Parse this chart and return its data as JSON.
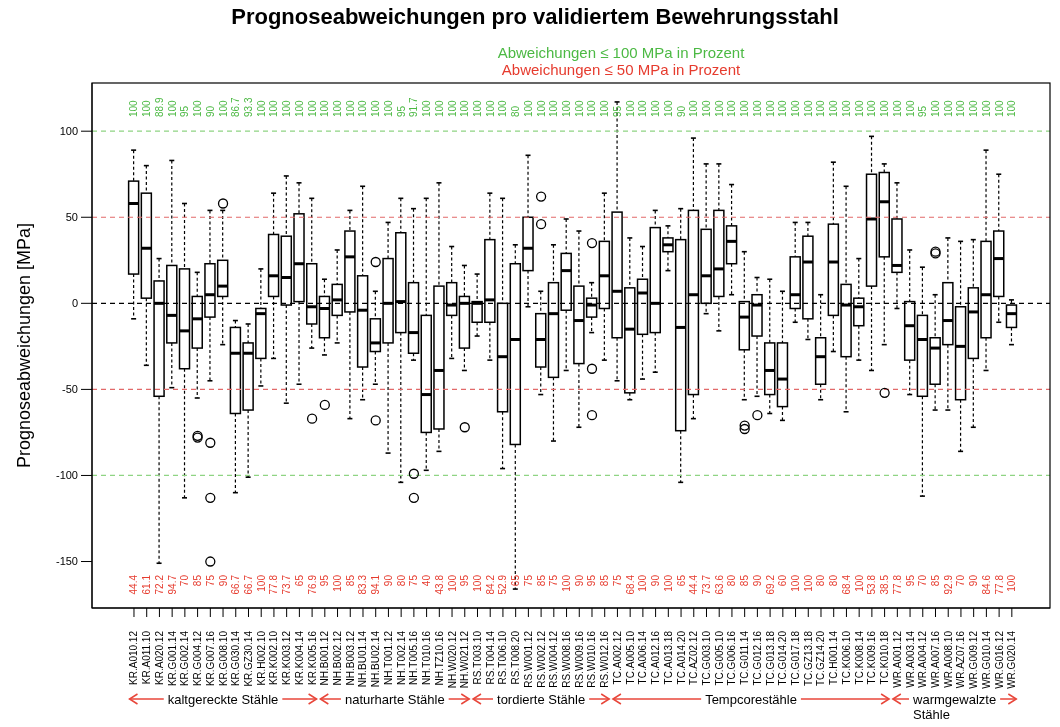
{
  "chart_data": {
    "type": "box",
    "title": "Prognoseabweichungen pro validiertem Bewehrungsstahl",
    "ylabel": "Prognoseabweichungen [MPa]",
    "categories": [
      "KR.A010.12",
      "KR.A011.10",
      "KR.A020.12",
      "KR.G001.14",
      "KR.G002.14",
      "KR.G004.12",
      "KR.G007.16",
      "KR.G008.10",
      "KR.G030.14",
      "KR.GZ30.14",
      "KR.H002.10",
      "KR.K002.10",
      "KR.K003.12",
      "KR.K004.14",
      "KR.K005.16",
      "NH.B001.12",
      "NH.B002.12",
      "NH.B003.12",
      "NH.BU01.14",
      "NH.BU02.14",
      "NH.T001.12",
      "NH.T002.14",
      "NH.T005.16",
      "NH.T010.16",
      "NH.TZ10.16",
      "NH.W020.12",
      "NH.W021.12",
      "RS.T003.10",
      "RS.T004.14",
      "RS.T006.10",
      "RS.T008.20",
      "RS.W001.12",
      "RS.W002.12",
      "RS.W004.12",
      "RS.W008.16",
      "RS.W009.16",
      "RS.W010.16",
      "RS.W012.16",
      "TC.A002.12",
      "TC.A005.10",
      "TC.A006.14",
      "TC.A012.16",
      "TC.A013.18",
      "TC.A014.20",
      "TC.AZ02.12",
      "TC.G003.10",
      "TC.G005.10",
      "TC.G006.16",
      "TC.G011.14",
      "TC.G012.16",
      "TC.G013.18",
      "TC.G014.20",
      "TC.G017.18",
      "TC.GZ13.18",
      "TC.GZ14.20",
      "TC.H001.14",
      "TC.K006.10",
      "TC.K008.14",
      "TC.K009.16",
      "TC.K010.18",
      "WR.A001.12",
      "WR.A003.14",
      "WR.A004.12",
      "WR.A007.16",
      "WR.A008.10",
      "WR.AZ07.16",
      "WR.G009.12",
      "WR.G010.14",
      "WR.G016.12",
      "WR.G020.14"
    ],
    "ylim": [
      -177,
      128
    ],
    "yticks": [
      -150,
      -100,
      -50,
      0,
      50,
      100
    ],
    "series": [
      {
        "color": "#000000",
        "boxes": [
          {
            "low": -9,
            "q1": 17,
            "median": 58,
            "q3": 71,
            "high": 89
          },
          {
            "low": -36,
            "q1": 3,
            "median": 32,
            "q3": 64,
            "high": 80
          },
          {
            "low": -151,
            "q1": -54,
            "median": 0,
            "q3": 13,
            "high": 26
          },
          {
            "low": -49,
            "q1": -23,
            "median": -7,
            "q3": 22,
            "high": 83
          },
          {
            "low": -113,
            "q1": -38,
            "median": -16,
            "q3": 20,
            "high": 58
          },
          {
            "low": -55,
            "q1": -26,
            "median": -9,
            "q3": 4,
            "high": 18,
            "outliers": [
              -77,
              -78
            ]
          },
          {
            "low": -45,
            "q1": -8,
            "median": 5,
            "q3": 23,
            "high": 54,
            "outliers": [
              -81,
              -113,
              -150
            ]
          },
          {
            "low": -24,
            "q1": 4,
            "median": 10,
            "q3": 25,
            "high": 54,
            "outliers": [
              58
            ]
          },
          {
            "low": -110,
            "q1": -64,
            "median": -29,
            "q3": -14,
            "high": -10
          },
          {
            "low": -101,
            "q1": -62,
            "median": -29,
            "q3": -23,
            "high": -12
          },
          {
            "low": -48,
            "q1": -32,
            "median": -6,
            "q3": -3,
            "high": 20
          },
          {
            "low": -32,
            "q1": 4,
            "median": 16,
            "q3": 40,
            "high": 64
          },
          {
            "low": -58,
            "q1": -1,
            "median": 15,
            "q3": 39,
            "high": 74
          },
          {
            "low": -47,
            "q1": 1,
            "median": 23,
            "q3": 52,
            "high": 70
          },
          {
            "low": -26,
            "q1": -12,
            "median": -2,
            "q3": 23,
            "high": 61,
            "outliers": [
              -67
            ]
          },
          {
            "low": -30,
            "q1": -20,
            "median": -3,
            "q3": 4,
            "high": 14,
            "outliers": [
              -59
            ]
          },
          {
            "low": -23,
            "q1": -7,
            "median": 2,
            "q3": 11,
            "high": 31
          },
          {
            "low": -67,
            "q1": -5,
            "median": 27,
            "q3": 42,
            "high": 54
          },
          {
            "low": -56,
            "q1": -37,
            "median": -4,
            "q3": 16,
            "high": 68
          },
          {
            "low": -47,
            "q1": -28,
            "median": -23,
            "q3": -9,
            "high": 7,
            "outliers": [
              24,
              -68
            ]
          },
          {
            "low": -87,
            "q1": -23,
            "median": 0,
            "q3": 26,
            "high": 47
          },
          {
            "low": -104,
            "q1": -17,
            "median": 1,
            "q3": 41,
            "high": 61
          },
          {
            "low": -33,
            "q1": -29,
            "median": -17,
            "q3": 12,
            "high": 55,
            "outliers": [
              -99,
              -113
            ]
          },
          {
            "low": -97,
            "q1": -75,
            "median": -53,
            "q3": -7,
            "high": 61
          },
          {
            "low": -86,
            "q1": -73,
            "median": -39,
            "q3": 10,
            "high": 70
          },
          {
            "low": -32,
            "q1": -7,
            "median": -1,
            "q3": 12,
            "high": 33
          },
          {
            "low": -39,
            "q1": -26,
            "median": 0,
            "q3": 4,
            "high": 22,
            "outliers": [
              -72
            ]
          },
          {
            "low": -19,
            "q1": -11,
            "median": 0,
            "q3": 1,
            "high": 17
          },
          {
            "low": -33,
            "q1": -11,
            "median": 2,
            "q3": 37,
            "high": 64
          },
          {
            "low": -96,
            "q1": -63,
            "median": -31,
            "q3": 0,
            "high": 61
          },
          {
            "low": -166,
            "q1": -82,
            "median": -21,
            "q3": 23,
            "high": 34
          },
          {
            "low": -2,
            "q1": 19,
            "median": 32,
            "q3": 50,
            "high": 86
          },
          {
            "low": -53,
            "q1": -37,
            "median": -21,
            "q3": -6,
            "high": 7,
            "outliers": [
              62,
              46
            ]
          },
          {
            "low": -80,
            "q1": -43,
            "median": -6,
            "q3": 12,
            "high": 34
          },
          {
            "low": -39,
            "q1": -4,
            "median": 19,
            "q3": 29,
            "high": 49
          },
          {
            "low": -72,
            "q1": -35,
            "median": -10,
            "q3": 10,
            "high": 42
          },
          {
            "low": -17,
            "q1": -8,
            "median": -1,
            "q3": 3,
            "high": 12,
            "outliers": [
              35,
              -38,
              -65
            ]
          },
          {
            "low": -33,
            "q1": -3,
            "median": 16,
            "q3": 36,
            "high": 64
          },
          {
            "low": -45,
            "q1": -20,
            "median": 7,
            "q3": 53,
            "high": 117
          },
          {
            "low": -56,
            "q1": -52,
            "median": -15,
            "q3": 9,
            "high": 38
          },
          {
            "low": -44,
            "q1": -18,
            "median": 6,
            "q3": 14,
            "high": 33
          },
          {
            "low": -40,
            "q1": -17,
            "median": 0,
            "q3": 44,
            "high": 54
          },
          {
            "low": 19,
            "q1": 30,
            "median": 34,
            "q3": 38,
            "high": 45
          },
          {
            "low": -104,
            "q1": -74,
            "median": -14,
            "q3": 37,
            "high": 55
          },
          {
            "low": -67,
            "q1": -53,
            "median": 5,
            "q3": 54,
            "high": 96
          },
          {
            "low": -6,
            "q1": 0,
            "median": 16,
            "q3": 43,
            "high": 81
          },
          {
            "low": -16,
            "q1": 4,
            "median": 20,
            "q3": 54,
            "high": 81
          },
          {
            "low": 5,
            "q1": 23,
            "median": 36,
            "q3": 45,
            "high": 69
          },
          {
            "low": -56,
            "q1": -27,
            "median": -8,
            "q3": 1,
            "high": 30,
            "outliers": [
              -71,
              -73
            ]
          },
          {
            "low": -54,
            "q1": -19,
            "median": -1,
            "q3": 5,
            "high": 15,
            "outliers": [
              -65
            ]
          },
          {
            "low": -64,
            "q1": -53,
            "median": -39,
            "q3": -23,
            "high": 14
          },
          {
            "low": -68,
            "q1": -60,
            "median": -44,
            "q3": -23,
            "high": 7
          },
          {
            "low": -11,
            "q1": -3,
            "median": 5,
            "q3": 27,
            "high": 47
          },
          {
            "low": -21,
            "q1": -9,
            "median": 24,
            "q3": 39,
            "high": 47
          },
          {
            "low": -56,
            "q1": -47,
            "median": -31,
            "q3": -20,
            "high": 5
          },
          {
            "low": -28,
            "q1": -7,
            "median": 24,
            "q3": 46,
            "high": 82
          },
          {
            "low": -63,
            "q1": -31,
            "median": -1,
            "q3": 11,
            "high": 68
          },
          {
            "low": -33,
            "q1": -13,
            "median": -2,
            "q3": 3,
            "high": 26
          },
          {
            "low": -39,
            "q1": 10,
            "median": 49,
            "q3": 75,
            "high": 97
          },
          {
            "low": -24,
            "q1": 27,
            "median": 59,
            "q3": 76,
            "high": 81,
            "outliers": [
              -52
            ]
          },
          {
            "low": -3,
            "q1": 18,
            "median": 22,
            "q3": 49,
            "high": 70
          },
          {
            "low": -53,
            "q1": -33,
            "median": -13,
            "q3": 1,
            "high": 31
          },
          {
            "low": -112,
            "q1": -54,
            "median": -21,
            "q3": -7,
            "high": 21
          },
          {
            "low": -62,
            "q1": -47,
            "median": -26,
            "q3": -20,
            "high": 5,
            "outliers": [
              30,
              29
            ]
          },
          {
            "low": -62,
            "q1": -24,
            "median": -10,
            "q3": 12,
            "high": 38
          },
          {
            "low": -86,
            "q1": -56,
            "median": -25,
            "q3": -2,
            "high": 36
          },
          {
            "low": -72,
            "q1": -32,
            "median": -5,
            "q3": 9,
            "high": 37
          },
          {
            "low": -39,
            "q1": -20,
            "median": 5,
            "q3": 36,
            "high": 89
          },
          {
            "low": -11,
            "q1": 4,
            "median": 26,
            "q3": 42,
            "high": 75
          },
          {
            "low": -24,
            "q1": -14,
            "median": -6,
            "q3": -1,
            "high": 2
          }
        ]
      }
    ],
    "ref_lines": [
      {
        "axis": "y",
        "value": 100,
        "color": "#8fd483",
        "line_style": "dashed"
      },
      {
        "axis": "y",
        "value": 50,
        "color": "#e26a6a",
        "line_style": "dashed"
      },
      {
        "axis": "y",
        "value": 0,
        "color": "#000000",
        "line_style": "dashed"
      },
      {
        "axis": "y",
        "value": -50,
        "color": "#e26a6a",
        "line_style": "dashed"
      },
      {
        "axis": "y",
        "value": -100,
        "color": "#8fd483",
        "line_style": "dashed"
      }
    ],
    "annotations": [
      "Abweichungen ≤ 100 MPa in Prozent",
      "Abweichungen ≤ 50 MPa in Prozent",
      "kaltgereckte Stähle",
      "naturharte Stähle",
      "tordierte Stähle",
      "Tempcorestähle",
      "warmgewalzte Stähle",
      "100",
      "100",
      "88.9",
      "100",
      "95",
      "100",
      "90",
      "100",
      "86.7",
      "93.3",
      "100",
      "100",
      "100",
      "100",
      "100",
      "100",
      "100",
      "100",
      "100",
      "100",
      "100",
      "95",
      "91.7",
      "100",
      "100",
      "100",
      "100",
      "100",
      "100",
      "100",
      "80",
      "100",
      "100",
      "100",
      "100",
      "100",
      "100",
      "100",
      "95",
      "100",
      "100",
      "100",
      "100",
      "90",
      "100",
      "100",
      "100",
      "100",
      "100",
      "100",
      "100",
      "100",
      "100",
      "100",
      "100",
      "100",
      "100",
      "100",
      "100",
      "100",
      "100",
      "100",
      "95",
      "100",
      "100",
      "100",
      "100",
      "100",
      "100",
      "100",
      "44.4",
      "61.1",
      "72.2",
      "94.7",
      "70",
      "85",
      "75",
      "90",
      "66.7",
      "66.7",
      "100",
      "77.8",
      "73.7",
      "65",
      "76.9",
      "95",
      "100",
      "85",
      "83.3",
      "94.1",
      "90",
      "80",
      "75",
      "40",
      "43.8",
      "100",
      "95",
      "100",
      "84.2",
      "52.9",
      "65",
      "75",
      "85",
      "75",
      "100",
      "90",
      "95",
      "85",
      "75",
      "68.4",
      "100",
      "90",
      "100",
      "65",
      "44.4",
      "73.7",
      "63.6",
      "80",
      "85",
      "90",
      "69.2",
      "60",
      "100",
      "100",
      "80",
      "80",
      "68.4",
      "100",
      "53.8",
      "38.5",
      "77.8",
      "95",
      "70",
      "85",
      "92.9",
      "70",
      "90",
      "84.6",
      "77.8",
      "100"
    ]
  }
}
